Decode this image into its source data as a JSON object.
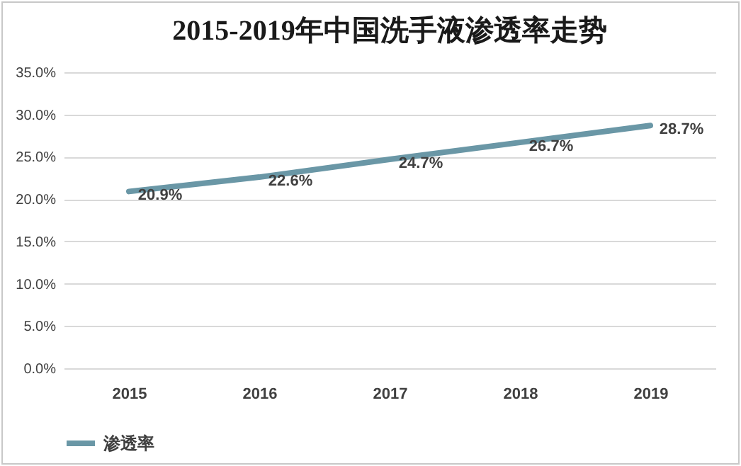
{
  "chart_data": {
    "type": "line",
    "title": "2015-2019年中国洗手液渗透率走势",
    "categories": [
      "2015",
      "2016",
      "2017",
      "2018",
      "2019"
    ],
    "series": [
      {
        "name": "渗透率",
        "color": "#6a97a6",
        "values": [
          20.9,
          22.6,
          24.7,
          26.7,
          28.7
        ],
        "value_labels": [
          "20.9%",
          "22.6%",
          "24.7%",
          "26.7%",
          "28.7%"
        ]
      }
    ],
    "ylim": [
      0,
      35
    ],
    "yticks": [
      {
        "value": 0,
        "label": "0.0%"
      },
      {
        "value": 5,
        "label": "5.0%"
      },
      {
        "value": 10,
        "label": "10.0%"
      },
      {
        "value": 15,
        "label": "15.0%"
      },
      {
        "value": 20,
        "label": "20.0%"
      },
      {
        "value": 25,
        "label": "25.0%"
      },
      {
        "value": 30,
        "label": "30.0%"
      },
      {
        "value": 35,
        "label": "35.0%"
      }
    ],
    "grid": "y",
    "legend": "bottom",
    "marker": "none",
    "line_style": "solid"
  }
}
